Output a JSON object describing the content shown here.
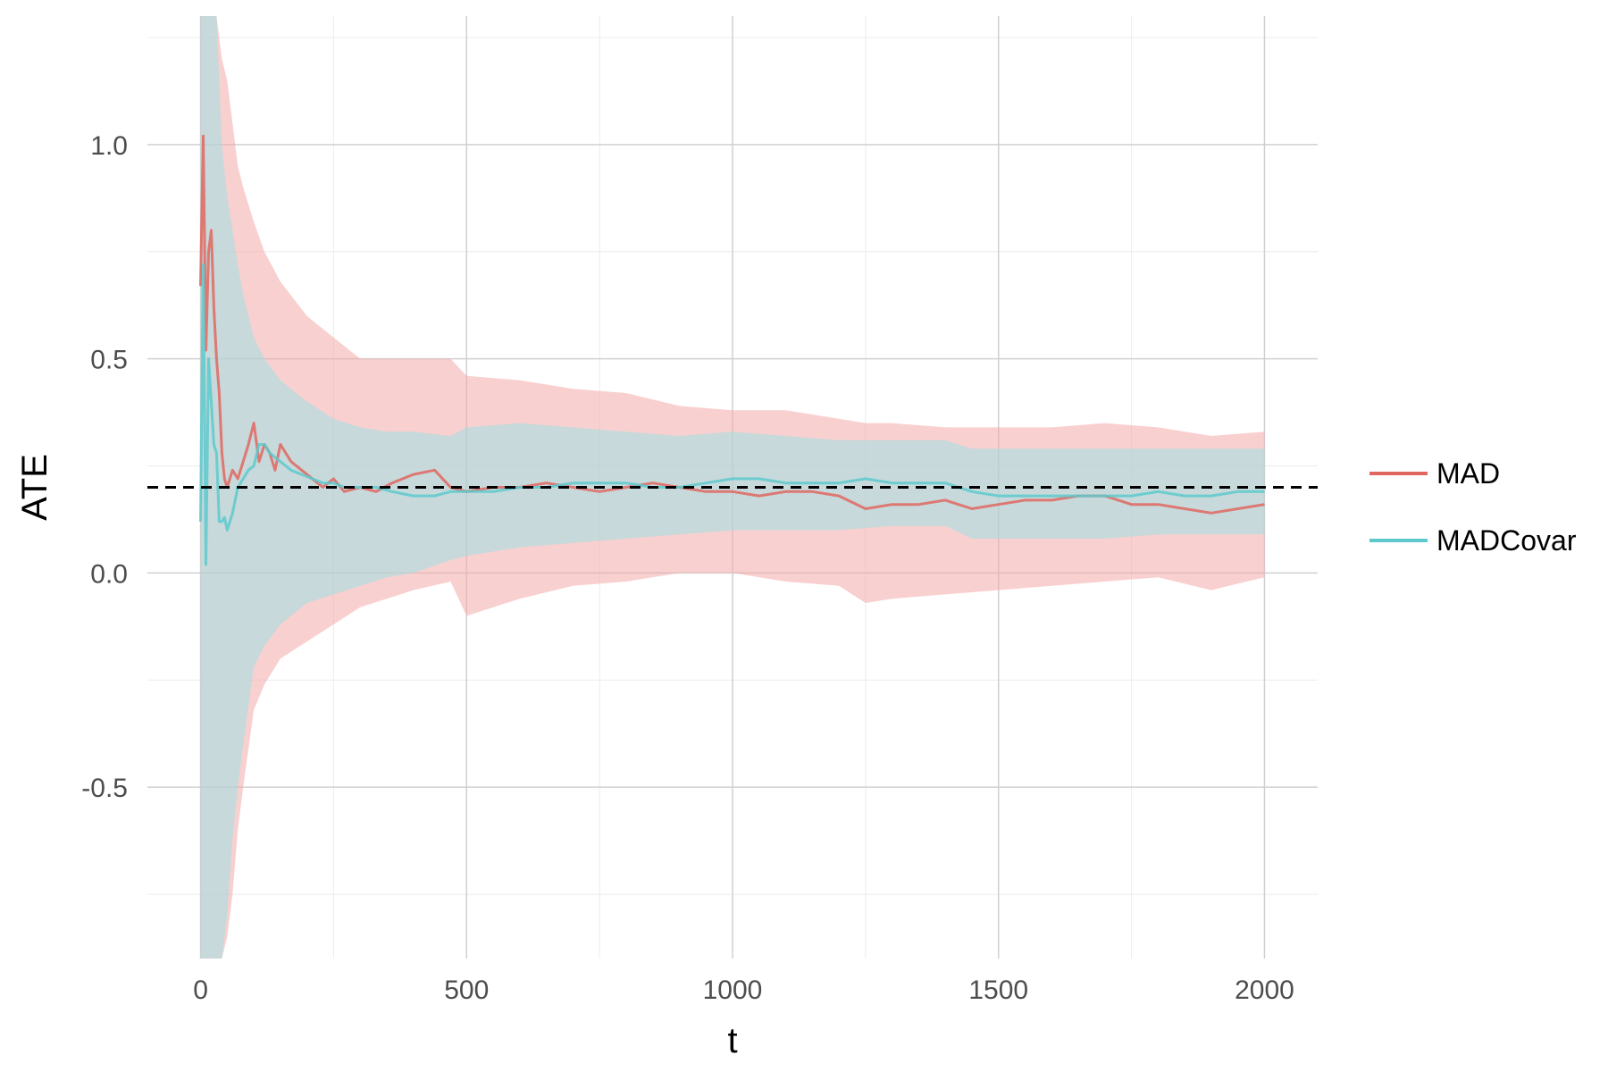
{
  "chart_data": {
    "type": "line",
    "title": "",
    "xlabel": "t",
    "ylabel": "ATE",
    "xlim": [
      -100,
      2100
    ],
    "ylim": [
      -0.9,
      1.3
    ],
    "x_ticks": [
      0,
      500,
      1000,
      1500,
      2000
    ],
    "x_tick_labels": [
      "0",
      "500",
      "1000",
      "1500",
      "2000"
    ],
    "y_ticks": [
      -0.5,
      0.0,
      0.5,
      1.0
    ],
    "y_tick_labels": [
      "-0.5",
      "0.0",
      "0.5",
      "1.0"
    ],
    "grid": true,
    "legend_position": "right",
    "reference_line": {
      "y": 0.2,
      "style": "dashed",
      "color": "#000000"
    },
    "colors": {
      "MAD": "#e06660",
      "MADCovar": "#5dc9cc"
    },
    "series": [
      {
        "name": "MAD",
        "color": "#e06660",
        "x": [
          0,
          5,
          10,
          15,
          20,
          25,
          30,
          35,
          40,
          45,
          50,
          60,
          70,
          80,
          90,
          100,
          110,
          120,
          130,
          140,
          150,
          170,
          190,
          210,
          230,
          250,
          270,
          300,
          330,
          360,
          400,
          440,
          470,
          500,
          550,
          600,
          650,
          700,
          750,
          800,
          850,
          900,
          950,
          1000,
          1050,
          1100,
          1150,
          1200,
          1250,
          1300,
          1350,
          1400,
          1450,
          1500,
          1550,
          1600,
          1650,
          1700,
          1750,
          1800,
          1850,
          1900,
          1950,
          2000
        ],
        "y": [
          0.67,
          1.02,
          0.52,
          0.75,
          0.8,
          0.62,
          0.5,
          0.42,
          0.28,
          0.22,
          0.2,
          0.24,
          0.22,
          0.26,
          0.3,
          0.35,
          0.26,
          0.3,
          0.28,
          0.24,
          0.3,
          0.26,
          0.24,
          0.22,
          0.2,
          0.22,
          0.19,
          0.2,
          0.19,
          0.21,
          0.23,
          0.24,
          0.2,
          0.19,
          0.2,
          0.2,
          0.21,
          0.2,
          0.19,
          0.2,
          0.21,
          0.2,
          0.19,
          0.19,
          0.18,
          0.19,
          0.19,
          0.18,
          0.15,
          0.16,
          0.16,
          0.17,
          0.15,
          0.16,
          0.17,
          0.17,
          0.18,
          0.18,
          0.16,
          0.16,
          0.15,
          0.14,
          0.15,
          0.16
        ]
      },
      {
        "name": "MADCovar",
        "color": "#5dc9cc",
        "x": [
          0,
          5,
          10,
          15,
          20,
          25,
          30,
          35,
          40,
          45,
          50,
          60,
          70,
          80,
          90,
          100,
          110,
          120,
          130,
          140,
          150,
          170,
          190,
          210,
          230,
          250,
          270,
          300,
          330,
          360,
          400,
          440,
          470,
          500,
          550,
          600,
          650,
          700,
          750,
          800,
          850,
          900,
          950,
          1000,
          1050,
          1100,
          1150,
          1200,
          1250,
          1300,
          1350,
          1400,
          1450,
          1500,
          1550,
          1600,
          1650,
          1700,
          1750,
          1800,
          1850,
          1900,
          1950,
          2000
        ],
        "y": [
          0.12,
          0.72,
          0.02,
          0.5,
          0.4,
          0.3,
          0.28,
          0.12,
          0.12,
          0.13,
          0.1,
          0.14,
          0.2,
          0.22,
          0.24,
          0.25,
          0.3,
          0.3,
          0.28,
          0.27,
          0.26,
          0.24,
          0.23,
          0.22,
          0.21,
          0.21,
          0.2,
          0.2,
          0.2,
          0.19,
          0.18,
          0.18,
          0.19,
          0.19,
          0.19,
          0.2,
          0.2,
          0.21,
          0.21,
          0.21,
          0.2,
          0.2,
          0.21,
          0.22,
          0.22,
          0.21,
          0.21,
          0.21,
          0.22,
          0.21,
          0.21,
          0.21,
          0.19,
          0.18,
          0.18,
          0.18,
          0.18,
          0.18,
          0.18,
          0.19,
          0.18,
          0.18,
          0.19,
          0.19
        ]
      }
    ],
    "bands": [
      {
        "name": "MAD",
        "color": "#f4a9a9",
        "x": [
          0,
          10,
          20,
          30,
          40,
          50,
          60,
          70,
          80,
          100,
          120,
          150,
          200,
          250,
          300,
          350,
          400,
          470,
          500,
          600,
          700,
          800,
          900,
          1000,
          1100,
          1200,
          1250,
          1300,
          1400,
          1500,
          1600,
          1700,
          1800,
          1900,
          2000
        ],
        "upper": [
          1.3,
          1.3,
          1.3,
          1.3,
          1.2,
          1.15,
          1.05,
          0.95,
          0.9,
          0.82,
          0.75,
          0.68,
          0.6,
          0.55,
          0.5,
          0.5,
          0.5,
          0.5,
          0.46,
          0.45,
          0.43,
          0.42,
          0.39,
          0.38,
          0.38,
          0.36,
          0.35,
          0.35,
          0.34,
          0.34,
          0.34,
          0.35,
          0.34,
          0.32,
          0.33
        ],
        "lower": [
          -0.9,
          -0.9,
          -0.9,
          -0.9,
          -0.9,
          -0.85,
          -0.75,
          -0.6,
          -0.5,
          -0.32,
          -0.26,
          -0.2,
          -0.16,
          -0.12,
          -0.08,
          -0.06,
          -0.04,
          -0.02,
          -0.1,
          -0.06,
          -0.03,
          -0.02,
          0.0,
          0.0,
          -0.02,
          -0.03,
          -0.07,
          -0.06,
          -0.05,
          -0.04,
          -0.03,
          -0.02,
          -0.01,
          -0.04,
          -0.01
        ]
      },
      {
        "name": "MADCovar",
        "color": "#9ee0e2",
        "x": [
          0,
          10,
          20,
          30,
          40,
          50,
          60,
          70,
          80,
          100,
          120,
          150,
          200,
          250,
          300,
          350,
          400,
          470,
          500,
          600,
          700,
          800,
          900,
          1000,
          1100,
          1200,
          1300,
          1400,
          1450,
          1500,
          1600,
          1700,
          1800,
          1900,
          2000
        ],
        "upper": [
          1.3,
          1.3,
          1.3,
          1.3,
          1.0,
          0.88,
          0.8,
          0.72,
          0.65,
          0.55,
          0.5,
          0.45,
          0.4,
          0.36,
          0.34,
          0.33,
          0.33,
          0.32,
          0.34,
          0.35,
          0.34,
          0.33,
          0.32,
          0.33,
          0.32,
          0.31,
          0.31,
          0.31,
          0.29,
          0.29,
          0.29,
          0.29,
          0.29,
          0.29,
          0.29
        ],
        "lower": [
          -0.9,
          -0.9,
          -0.9,
          -0.9,
          -0.9,
          -0.8,
          -0.62,
          -0.5,
          -0.4,
          -0.22,
          -0.17,
          -0.12,
          -0.07,
          -0.05,
          -0.03,
          -0.01,
          0.0,
          0.03,
          0.04,
          0.06,
          0.07,
          0.08,
          0.09,
          0.1,
          0.1,
          0.1,
          0.11,
          0.11,
          0.08,
          0.08,
          0.08,
          0.08,
          0.09,
          0.09,
          0.09
        ]
      }
    ]
  }
}
